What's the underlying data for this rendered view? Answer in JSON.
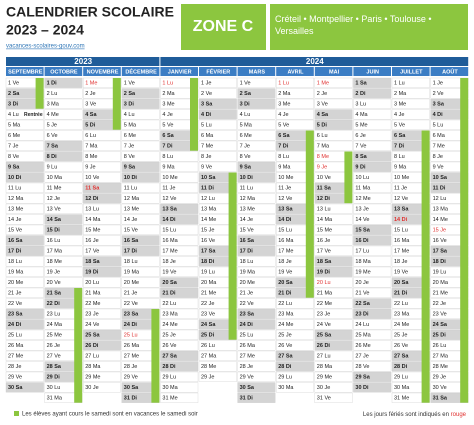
{
  "header": {
    "title": "CALENDRIER SCOLAIRE",
    "years": "2023 – 2024",
    "site": "vacances-scolaires-gouv.com",
    "zone": "ZONE C",
    "cities": "Créteil • Montpellier • Paris • Toulouse • Versailles"
  },
  "year_bands": [
    {
      "label": "2023",
      "span": 4
    },
    {
      "label": "2024",
      "span": 8
    }
  ],
  "months": [
    {
      "name": "SEPTEMBRE",
      "days": [
        "1 Ve",
        "2 Sa",
        "3 Di",
        {
          "text": "4 Lu",
          "note": "Rentrée"
        },
        "5 Ma",
        "6 Me",
        "7 Je",
        "8 Ve",
        "9 Sa",
        "10 Di",
        "11 Lu",
        "12 Ma",
        "13 Me",
        "14 Je",
        "15 Ve",
        "16 Sa",
        "17 Di",
        "18 Lu",
        "19 Ma",
        "20 Me",
        "21 Je",
        "22 Ve",
        "23 Sa",
        "24 Di",
        "25 Lu",
        "26 Ma",
        "27 Me",
        "28 Je",
        "29 Ve",
        "30 Sa"
      ]
    },
    {
      "name": "OCTOBRE",
      "days": [
        "1 Di",
        "2 Lu",
        "3 Ma",
        "4 Me",
        "5 Je",
        "6 Ve",
        "7 Sa",
        "8 Di",
        "9 Lu",
        "10 Ma",
        "11 Me",
        "12 Je",
        "13 Ve",
        "14 Sa",
        "15 Di",
        "16 Lu",
        "17 Ma",
        "18 Me",
        "19 Je",
        "20 Ve",
        "21 Sa",
        "22 Di",
        "23 Lu",
        "24 Ma",
        "25 Me",
        "26 Je",
        "27 Ve",
        "28 Sa",
        "29 Di",
        "30 Lu",
        "31 Ma"
      ]
    },
    {
      "name": "NOVEMBRE",
      "days": [
        {
          "text": "1 Me",
          "color": "#e0302f"
        },
        "2 Je",
        "3 Ve",
        "4 Sa",
        "5 Di",
        "6 Lu",
        "7 Ma",
        "8 Me",
        "9 Je",
        "10 Ve",
        {
          "text": "11 Sa",
          "color": "#e0302f"
        },
        "12 Di",
        "13 Lu",
        "14 Ma",
        "15 Me",
        "16 Je",
        "17 Ve",
        "18 Sa",
        "19 Di",
        "20 Lu",
        "21 Ma",
        "22 Me",
        "23 Je",
        "24 Ve",
        "25 Sa",
        "26 Di",
        "27 Lu",
        "28 Ma",
        "29 Me",
        "30 Je"
      ]
    },
    {
      "name": "DÉCEMBRE",
      "days": [
        "1 Ve",
        "2 Sa",
        "3 Di",
        "4 Lu",
        "5 Ma",
        "6 Me",
        "7 Je",
        "8 Ve",
        "9 Sa",
        "10 Di",
        "11 Lu",
        "12 Ma",
        "13 Me",
        "14 Je",
        "15 Ve",
        "16 Sa",
        "17 Di",
        "18 Lu",
        "19 Ma",
        "20 Me",
        "21 Je",
        "22 Ve",
        "23 Sa",
        "24 Di",
        {
          "text": "25 Lu",
          "color": "#e0302f"
        },
        "26 Ma",
        "27 Me",
        "28 Je",
        "29 Ve",
        "30 Sa",
        "31 Di"
      ]
    },
    {
      "name": "JANVIER",
      "days": [
        {
          "text": "1 Lu",
          "color": "#e0302f"
        },
        "2 Ma",
        "3 Me",
        "4 Je",
        "5 Ve",
        "6 Sa",
        "7 Di",
        "8 Lu",
        "9 Ma",
        "10 Me",
        "11 Je",
        "12 Ve",
        "13 Sa",
        "14 Di",
        "15 Lu",
        "16 Ma",
        "17 Me",
        "18 Je",
        "19 Ve",
        "20 Sa",
        "21 Di",
        "22 Lu",
        "23 Ma",
        "24 Me",
        "25 Je",
        "26 Ve",
        "27 Sa",
        "28 Di",
        "29 Lu",
        "30 Ma",
        "31 Me"
      ]
    },
    {
      "name": "FÉVRIER",
      "days": [
        "1 Je",
        "2 Ve",
        "3 Sa",
        "4 Di",
        "5 Lu",
        "6 Ma",
        "7 Me",
        "8 Je",
        "9 Ve",
        "10 Sa",
        "11 Di",
        "12 Lu",
        "13 Ma",
        "14 Me",
        "15 Je",
        "16 Ve",
        "17 Sa",
        "18 Di",
        "19 Lu",
        "20 Ma",
        "21 Me",
        "22 Je",
        "23 Ve",
        "24 Sa",
        "25 Di",
        "26 Lu",
        "27 Ma",
        "28 Me",
        "29 Je"
      ]
    },
    {
      "name": "MARS",
      "days": [
        "1 Ve",
        "2 Sa",
        "3 Di",
        "4 Lu",
        "5 Ma",
        "6 Me",
        "7 Je",
        "8 Ve",
        "9 Sa",
        "10 Di",
        "11 Lu",
        "12 Ma",
        "13 Me",
        "14 Je",
        "15 Ve",
        "16 Sa",
        "17 Di",
        "18 Lu",
        "19 Ma",
        "20 Me",
        "21 Je",
        "22 Ve",
        "23 Sa",
        "24 Di",
        "25 Lu",
        "26 Ma",
        "27 Me",
        "28 Je",
        "29 Ve",
        "30 Sa",
        "31 Di"
      ]
    },
    {
      "name": "AVRIL",
      "days": [
        {
          "text": "1 Lu",
          "color": "#e0302f"
        },
        "2 Ma",
        "3 Me",
        "4 Je",
        "5 Ve",
        "6 Sa",
        "7 Di",
        "8 Lu",
        "9 Ma",
        "10 Me",
        "11 Je",
        "12 Ve",
        "13 Sa",
        "14 Di",
        "15 Lu",
        "16 Ma",
        "17 Me",
        "18 Je",
        "19 Ve",
        "20 Sa",
        "21 Di",
        "22 Lu",
        "23 Ma",
        "24 Me",
        "25 Je",
        "26 Ve",
        "27 Sa",
        "28 Di",
        "29 Lu",
        "30 Ma"
      ]
    },
    {
      "name": "MAI",
      "days": [
        {
          "text": "1 Me",
          "color": "#e0302f"
        },
        "2 Je",
        "3 Ve",
        "4 Sa",
        "5 Di",
        "6 Lu",
        "7 Ma",
        {
          "text": "8 Me",
          "color": "#e0302f"
        },
        {
          "text": "9 Je",
          "color": "#e0302f"
        },
        "10 Ve",
        "11 Sa",
        "12 Di",
        "13 Lu",
        "14 Ma",
        "15 Me",
        "16 Je",
        "17 Ve",
        "18 Sa",
        "19 Di",
        {
          "text": "20 Lu",
          "color": "#e0302f"
        },
        "21 Ma",
        "22 Me",
        "23 Je",
        "24 Ve",
        "25 Sa",
        "26 Di",
        "27 Lu",
        "28 Ma",
        "29 Me",
        "30 Je",
        "31 Ve"
      ]
    },
    {
      "name": "JUIN",
      "days": [
        "1 Sa",
        "2 Di",
        "3 Lu",
        "4 Ma",
        "5 Me",
        "6 Je",
        "7 Ve",
        "8 Sa",
        "9 Di",
        "10 Lu",
        "11 Ma",
        "12 Me",
        "13 Je",
        "14 Ve",
        "15 Sa",
        "16 Di",
        "17 Lu",
        "18 Ma",
        "19 Me",
        "20 Je",
        "21 Ve",
        "22 Sa",
        "23 Di",
        "24 Lu",
        "25 Ma",
        "26 Me",
        "27 Je",
        "28 Ve",
        "29 Sa",
        "30 Di"
      ]
    },
    {
      "name": "JUILLET",
      "days": [
        "1 Lu",
        "2 Ma",
        "3 Me",
        "4 Je",
        "5 Ve",
        "6 Sa",
        "7 Di",
        "8 Lu",
        "9 Ma",
        "10 Me",
        "11 Je",
        "12 Ve",
        "13 Sa",
        {
          "text": "14 Di",
          "color": "#e0302f"
        },
        "15 Lu",
        "16 Ma",
        "17 Me",
        "18 Je",
        "19 Ve",
        "20 Sa",
        "21 Di",
        "22 Lu",
        "23 Ma",
        "24 Me",
        "25 Je",
        "26 Ve",
        "27 Sa",
        "28 Di",
        "29 Lu",
        "30 Ma",
        "31 Me"
      ]
    },
    {
      "name": "AOÛT",
      "days": [
        "1 Je",
        "2 Ve",
        "3 Sa",
        "4 Di",
        "5 Lu",
        "6 Ma",
        "7 Me",
        "8 Je",
        "9 Ve",
        "10 Sa",
        "11 Di",
        "12 Lu",
        "13 Ma",
        "14 Me",
        {
          "text": "15 Je",
          "color": "#e0302f"
        },
        "16 Ve",
        "17 Sa",
        "18 Di",
        "19 Lu",
        "20 Ma",
        "21 Me",
        "22 Je",
        "23 Ve",
        "24 Sa",
        "25 Di",
        "26 Lu",
        "27 Ma",
        "28 Me",
        "29 Je",
        "30 Ve",
        "31 Sa"
      ]
    }
  ],
  "vacations": {
    "color": "#8cc63f",
    "ranges": [
      {
        "month": 0,
        "from": 1,
        "to": 3
      },
      {
        "month": 1,
        "from": 21,
        "to": 31
      },
      {
        "month": 2,
        "from": 1,
        "to": 5
      },
      {
        "month": 3,
        "from": 23,
        "to": 31
      },
      {
        "month": 4,
        "from": 1,
        "to": 7
      },
      {
        "month": 5,
        "from": 10,
        "to": 25
      },
      {
        "month": 7,
        "from": 6,
        "to": 21
      },
      {
        "month": 8,
        "from": 8,
        "to": 12
      },
      {
        "month": 10,
        "from": 6,
        "to": 31
      },
      {
        "month": 11,
        "from": 1,
        "to": 31
      }
    ]
  },
  "footer": {
    "note": "Les élèves ayant cours le samedi sont en vacances le samedi soir",
    "holidays_text": "Les jours fériés sont indiqués en",
    "holidays_word": "rouge"
  }
}
